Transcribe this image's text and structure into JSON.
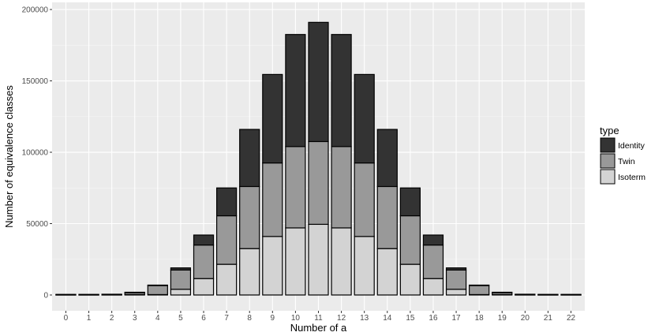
{
  "chart_data": {
    "type": "bar",
    "stacked": true,
    "title": "",
    "xlabel": "Number of a",
    "ylabel": "Number of equivalence classes",
    "categories": [
      "0",
      "1",
      "2",
      "3",
      "4",
      "5",
      "6",
      "7",
      "8",
      "9",
      "10",
      "11",
      "12",
      "13",
      "14",
      "15",
      "16",
      "17",
      "18",
      "19",
      "20",
      "21",
      "22"
    ],
    "ylim": [
      0,
      205000
    ],
    "yticks": [
      0,
      50000,
      100000,
      150000,
      200000
    ],
    "grid": true,
    "legend": {
      "title": "type",
      "position": "right"
    },
    "series": [
      {
        "name": "Isoterm",
        "color": "#d3d3d3",
        "values": [
          0,
          0,
          0,
          300,
          300,
          4000,
          11500,
          21500,
          32500,
          41000,
          47000,
          49500,
          47000,
          41000,
          32500,
          21500,
          11500,
          4000,
          300,
          300,
          0,
          0,
          0
        ]
      },
      {
        "name": "Twin",
        "color": "#999999",
        "values": [
          0,
          0,
          200,
          1300,
          6300,
          13500,
          23500,
          34000,
          43500,
          51500,
          57000,
          58000,
          57000,
          51500,
          43500,
          34000,
          23500,
          13500,
          6300,
          1300,
          200,
          0,
          0
        ]
      },
      {
        "name": "Identity",
        "color": "#333333",
        "values": [
          0,
          0,
          0,
          200,
          200,
          1500,
          7000,
          19500,
          40000,
          62000,
          78500,
          83500,
          78500,
          62000,
          40000,
          19500,
          7000,
          1500,
          200,
          200,
          0,
          0,
          0
        ]
      }
    ]
  }
}
